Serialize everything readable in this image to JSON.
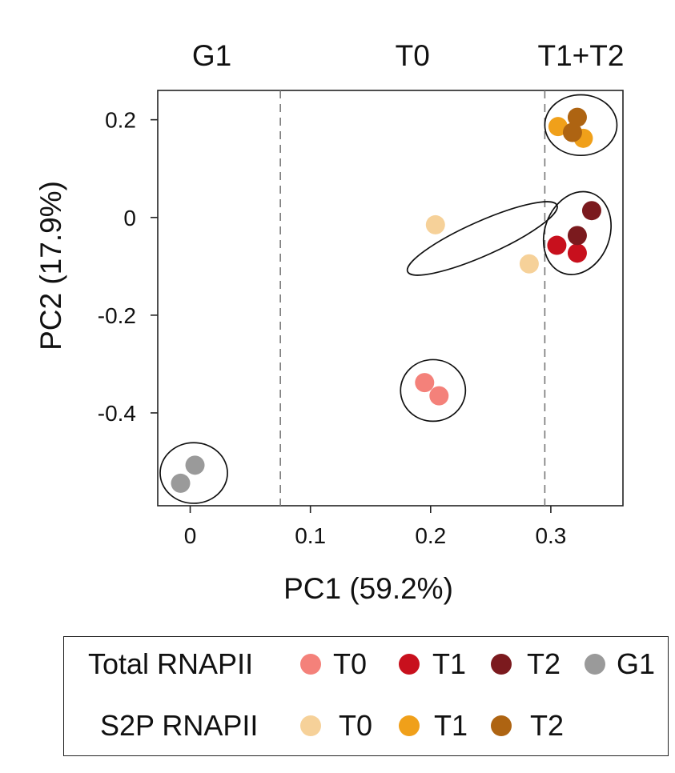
{
  "chart_data": {
    "type": "scatter",
    "xlabel": "PC1 (59.2%)",
    "ylabel": "PC2 (17.9%)",
    "xlim": [
      -0.027,
      0.36
    ],
    "ylim": [
      -0.59,
      0.26
    ],
    "xticks": [
      0,
      0.1,
      0.2,
      0.3
    ],
    "xtick_labels": [
      "0",
      "0.1",
      "0.2",
      "0.3"
    ],
    "yticks": [
      0.2,
      0,
      -0.2,
      -0.4
    ],
    "ytick_labels": [
      "0.2",
      "0",
      "-0.2",
      "-0.4"
    ],
    "grid": false,
    "phase_dividers": [
      0.075,
      0.295
    ],
    "phase_labels": [
      {
        "text": "G1",
        "x": 0.018
      },
      {
        "text": "T0",
        "x": 0.185
      },
      {
        "text": "T1+T2",
        "x": 0.325
      }
    ],
    "series": [
      {
        "name": "T0",
        "group": "Total RNAPII",
        "color": "#F4817A",
        "points": [
          {
            "x": 0.195,
            "y": -0.338
          },
          {
            "x": 0.207,
            "y": -0.365
          }
        ]
      },
      {
        "name": "T1",
        "group": "Total RNAPII",
        "color": "#C8101D",
        "points": [
          {
            "x": 0.305,
            "y": -0.057
          },
          {
            "x": 0.322,
            "y": -0.073
          }
        ]
      },
      {
        "name": "T2",
        "group": "Total RNAPII",
        "color": "#7B1A1E",
        "points": [
          {
            "x": 0.322,
            "y": -0.037
          },
          {
            "x": 0.334,
            "y": 0.014
          }
        ]
      },
      {
        "name": "G1",
        "group": "Total RNAPII",
        "color": "#9A9A9A",
        "points": [
          {
            "x": 0.004,
            "y": -0.507
          },
          {
            "x": -0.008,
            "y": -0.544
          }
        ]
      },
      {
        "name": "T0",
        "group": "S2P RNAPII",
        "color": "#F6D199",
        "points": [
          {
            "x": 0.204,
            "y": -0.015
          },
          {
            "x": 0.282,
            "y": -0.095
          }
        ]
      },
      {
        "name": "T1",
        "group": "S2P RNAPII",
        "color": "#F0A01A",
        "points": [
          {
            "x": 0.306,
            "y": 0.186
          },
          {
            "x": 0.327,
            "y": 0.162
          }
        ]
      },
      {
        "name": "T2",
        "group": "S2P RNAPII",
        "color": "#AE6412",
        "points": [
          {
            "x": 0.322,
            "y": 0.205
          },
          {
            "x": 0.318,
            "y": 0.174
          }
        ]
      }
    ],
    "cluster_ellipses": [
      {
        "cx": 0.003,
        "cy": -0.523,
        "rx": 0.028,
        "ry": 0.062,
        "angle": 0
      },
      {
        "cx": 0.202,
        "cy": -0.354,
        "rx": 0.027,
        "ry": 0.063,
        "angle": 0
      },
      {
        "cx": 0.243,
        "cy": -0.043,
        "rx": 0.068,
        "ry": 0.035,
        "angle": -24
      },
      {
        "cx": 0.322,
        "cy": -0.032,
        "rx": 0.027,
        "ry": 0.087,
        "angle": 20
      },
      {
        "cx": 0.325,
        "cy": 0.189,
        "rx": 0.03,
        "ry": 0.062,
        "angle": 0
      }
    ],
    "legend": {
      "position": "bottom",
      "rows": [
        {
          "title": "Total RNAPII",
          "items": [
            {
              "label": "T0",
              "color": "#F4817A"
            },
            {
              "label": "T1",
              "color": "#C8101D"
            },
            {
              "label": "T2",
              "color": "#7B1A1E"
            },
            {
              "label": "G1",
              "color": "#9A9A9A"
            }
          ]
        },
        {
          "title": "S2P RNAPII",
          "items": [
            {
              "label": "T0",
              "color": "#F6D199"
            },
            {
              "label": "T1",
              "color": "#F0A01A"
            },
            {
              "label": "T2",
              "color": "#AE6412"
            }
          ]
        }
      ]
    }
  }
}
